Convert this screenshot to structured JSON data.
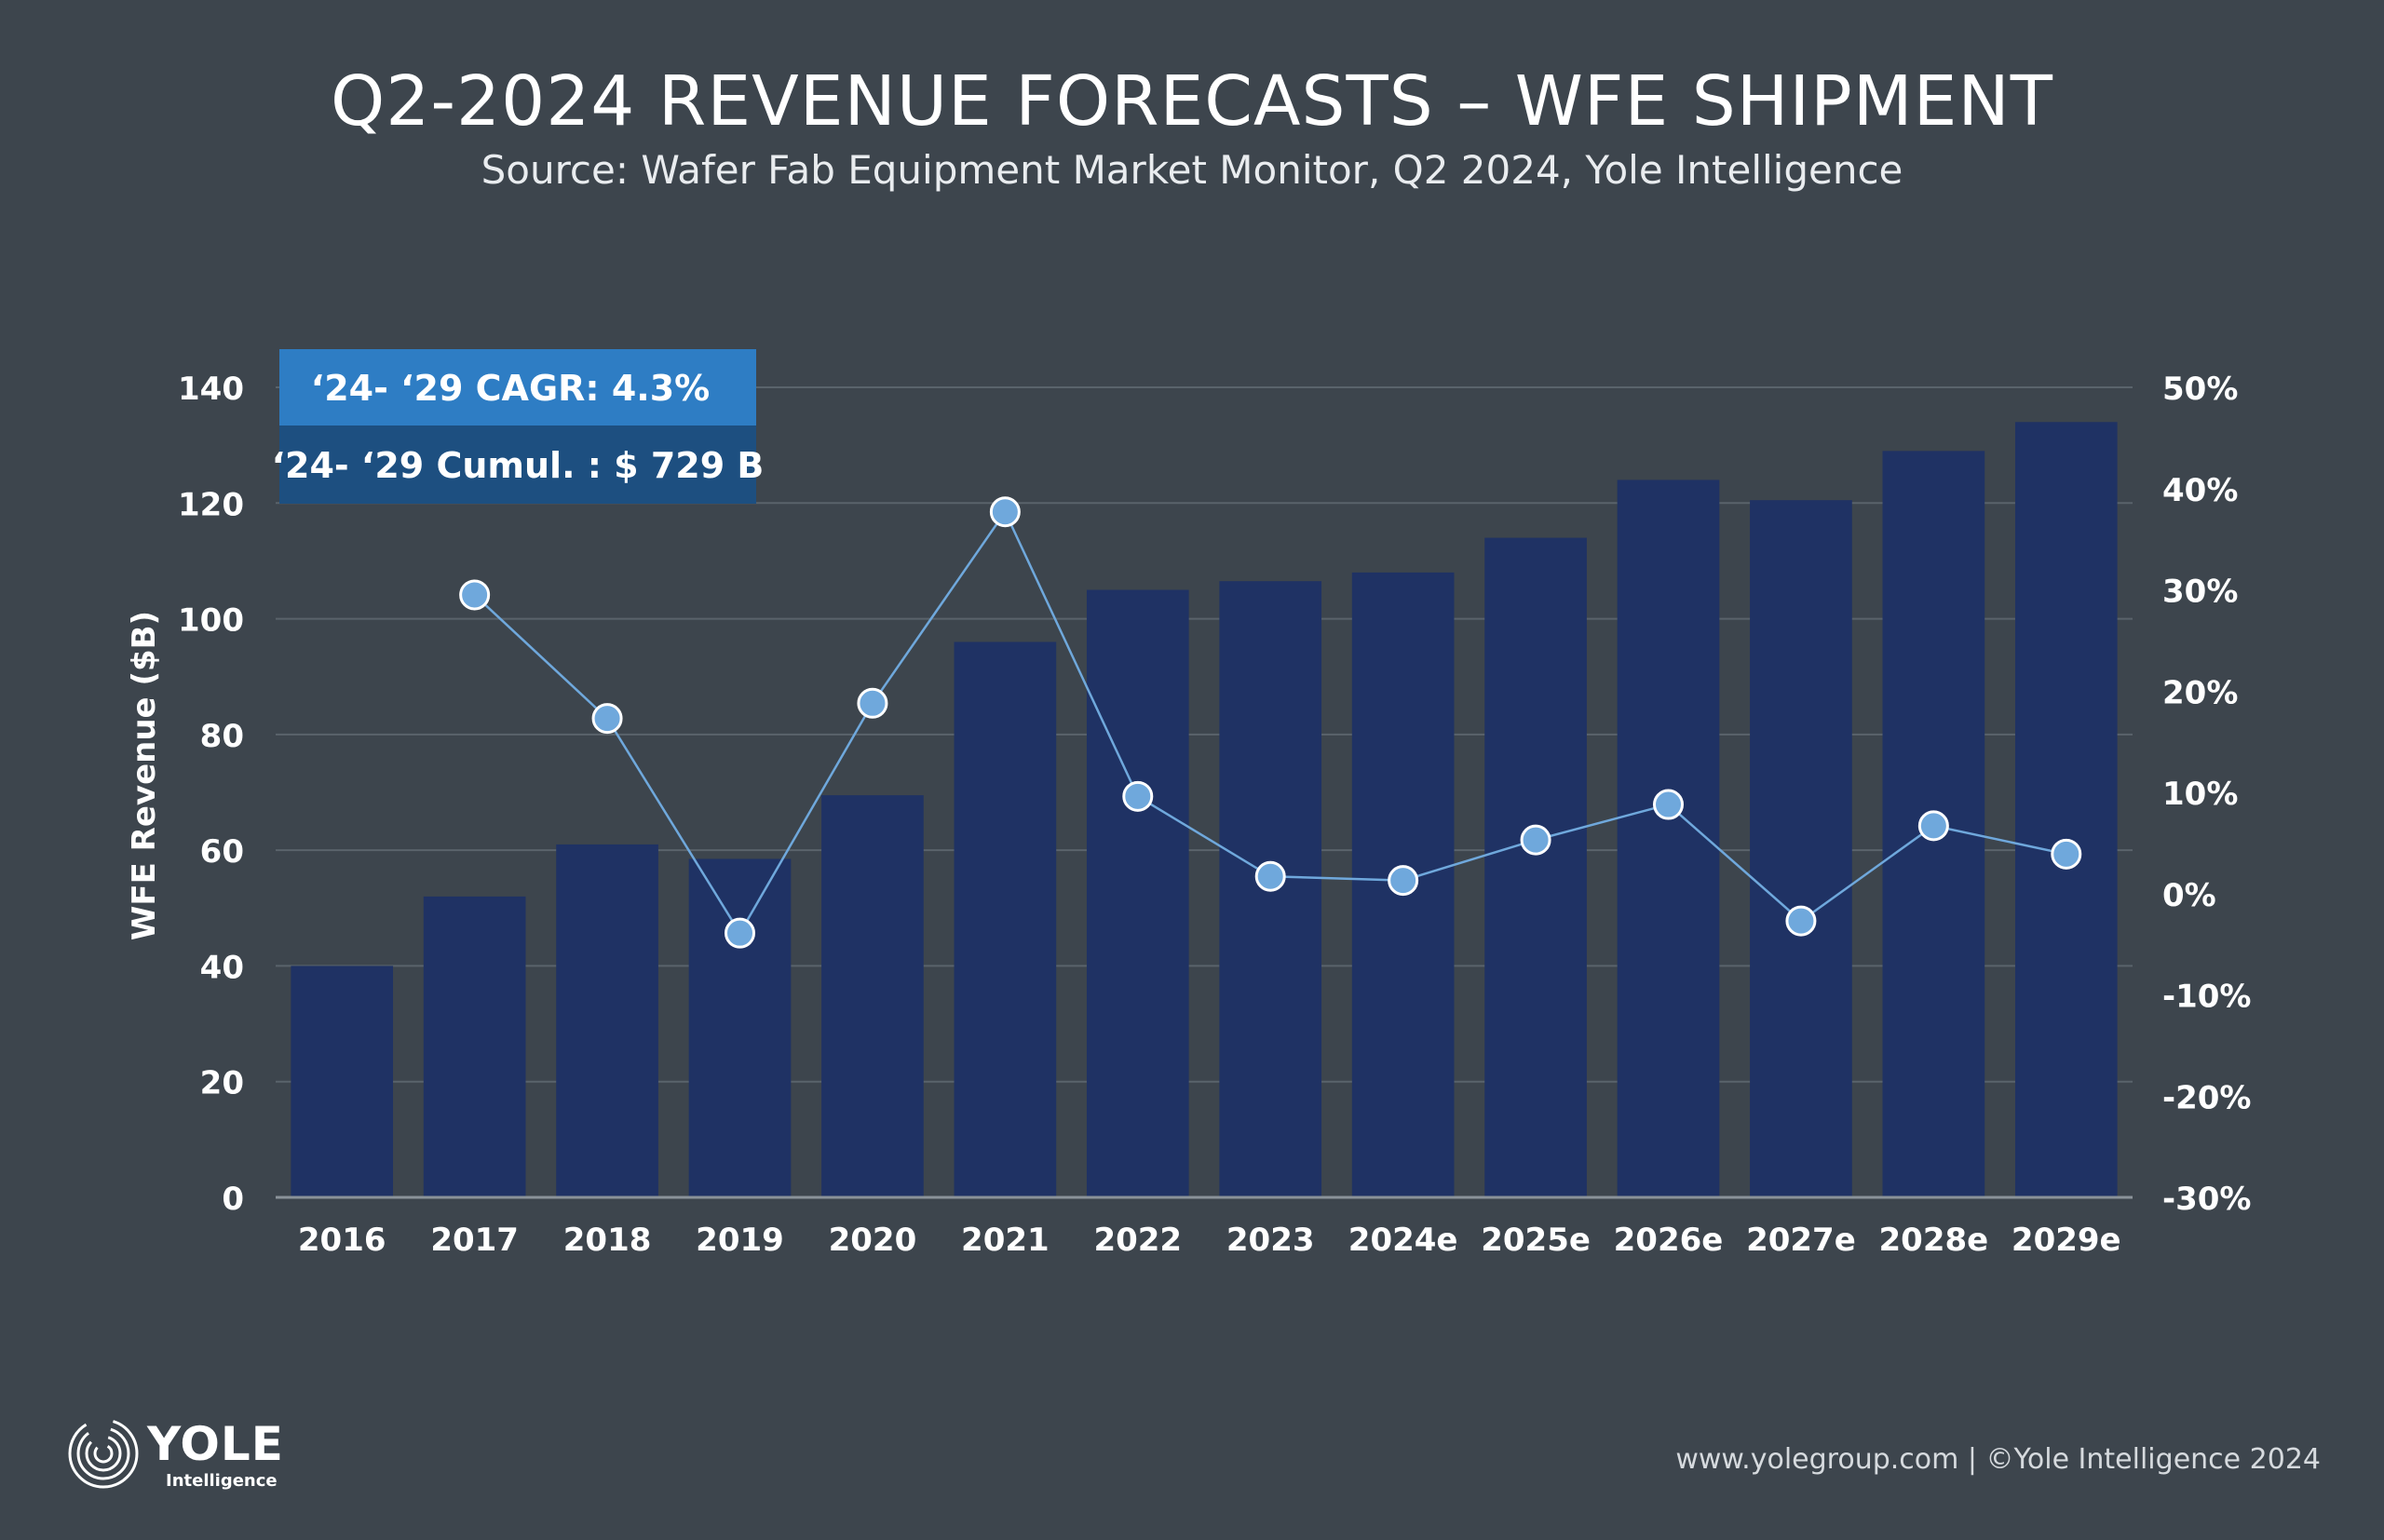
{
  "header": {
    "title": "Q2-2024 REVENUE FORECASTS – WFE SHIPMENT",
    "subtitle": "Source: Wafer Fab Equipment Market Monitor, Q2 2024, Yole Intelligence"
  },
  "info_box": {
    "cagr": "‘24- ‘29 CAGR: 4.3%",
    "cumulative": "‘24- ‘29 Cumul. : $ 729 B"
  },
  "footer": {
    "url": "www.yolegroup.com | ©Yole Intelligence 2024",
    "logo_word": "YOLE",
    "logo_sub": "Intelligence"
  },
  "chart_data": {
    "type": "bar",
    "categories": [
      "2016",
      "2017",
      "2018",
      "2019",
      "2020",
      "2021",
      "2022",
      "2023",
      "2024e",
      "2025e",
      "2026e",
      "2027e",
      "2028e",
      "2029e"
    ],
    "series": [
      {
        "axis": "left",
        "kind": "bar",
        "values": [
          40,
          52,
          61,
          58.5,
          69.5,
          96,
          105,
          106.5,
          108,
          114,
          124,
          120.5,
          129,
          134
        ]
      },
      {
        "axis": "right",
        "kind": "line",
        "values": [
          null,
          29.5,
          17.3,
          -3.9,
          18.8,
          37.7,
          9.6,
          1.7,
          1.3,
          5.3,
          8.8,
          -2.7,
          6.7,
          3.9
        ]
      }
    ],
    "ylabel": "WFE Revenue ($B)",
    "ylim": [
      0,
      140
    ],
    "yticks": [
      "0",
      "20",
      "40",
      "60",
      "80",
      "100",
      "120",
      "140"
    ],
    "y2lim": [
      -30,
      50
    ],
    "y2ticks": [
      "-30%",
      "-20%",
      "-10%",
      "0%",
      "10%",
      "20%",
      "30%",
      "40%",
      "50%"
    ],
    "grid": true,
    "colors": {
      "bar": "#1f3264",
      "line": "#6fa8dc",
      "marker_fill": "#6fa8dc",
      "marker_stroke": "#ffffff",
      "grid": "#5a636b",
      "axis": "#8a9299",
      "cagr_box": "#2e7dc4",
      "cumul_box": "#1d4f80"
    }
  }
}
